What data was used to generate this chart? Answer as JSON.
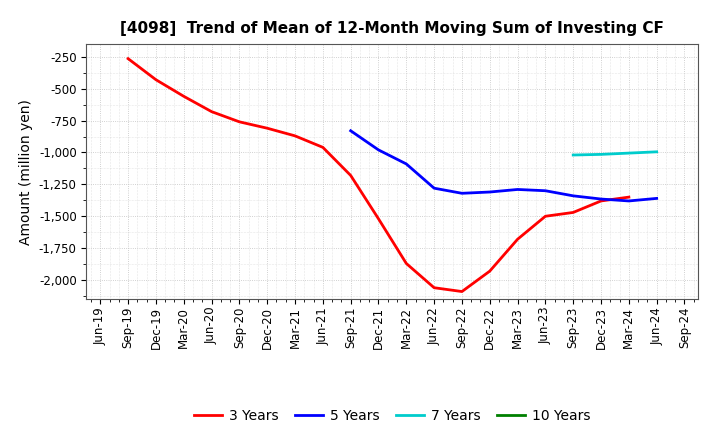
{
  "title": "[4098]  Trend of Mean of 12-Month Moving Sum of Investing CF",
  "ylabel": "Amount (million yen)",
  "background_color": "#ffffff",
  "plot_background": "#ffffff",
  "x_labels": [
    "Jun-19",
    "Sep-19",
    "Dec-19",
    "Mar-20",
    "Jun-20",
    "Sep-20",
    "Dec-20",
    "Mar-21",
    "Jun-21",
    "Sep-21",
    "Dec-21",
    "Mar-22",
    "Jun-22",
    "Sep-22",
    "Dec-22",
    "Mar-23",
    "Jun-23",
    "Sep-23",
    "Dec-23",
    "Mar-24",
    "Jun-24",
    "Sep-24"
  ],
  "series_3y": {
    "label": "3 Years",
    "color": "#ff0000",
    "x": [
      1,
      2,
      3,
      4,
      5,
      6,
      7,
      8,
      9,
      10,
      11,
      12,
      13,
      14,
      15,
      16,
      17,
      18,
      19
    ],
    "y": [
      -265,
      -430,
      -560,
      -680,
      -760,
      -810,
      -870,
      -960,
      -1180,
      -1520,
      -1870,
      -2060,
      -2090,
      -1930,
      -1680,
      -1500,
      -1470,
      -1380,
      -1350
    ]
  },
  "series_5y": {
    "label": "5 Years",
    "color": "#0000ff",
    "x": [
      9,
      10,
      11,
      12,
      13,
      14,
      15,
      16,
      17,
      18,
      19,
      20
    ],
    "y": [
      -830,
      -980,
      -1090,
      -1280,
      -1320,
      -1310,
      -1290,
      -1300,
      -1340,
      -1365,
      -1380,
      -1360
    ]
  },
  "series_7y": {
    "label": "7 Years",
    "color": "#00cccc",
    "x": [
      17,
      18,
      19,
      20
    ],
    "y": [
      -1020,
      -1015,
      -1005,
      -995
    ]
  },
  "series_10y": {
    "label": "10 Years",
    "color": "#008000",
    "x": [],
    "y": []
  },
  "ylim": [
    -2150,
    -150
  ],
  "yticks": [
    -250,
    -500,
    -750,
    -1000,
    -1250,
    -1500,
    -1750,
    -2000
  ],
  "grid_color": "#bbbbbb",
  "title_fontsize": 11,
  "label_fontsize": 10,
  "tick_fontsize": 8.5,
  "legend_fontsize": 10,
  "linewidth": 2.0
}
